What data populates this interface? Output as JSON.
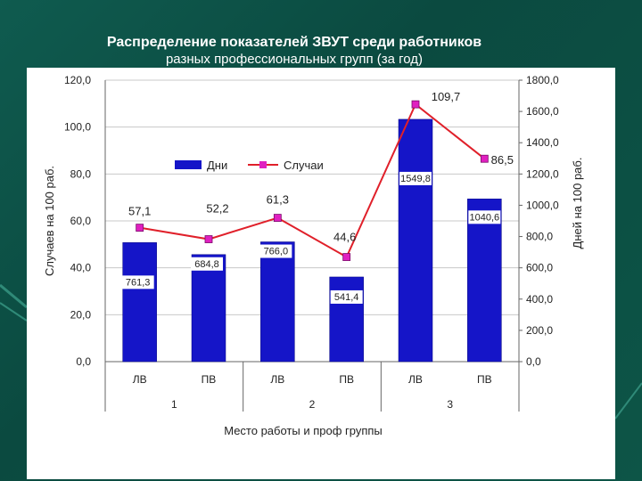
{
  "slide": {
    "title_line1": "Распределение показателей ЗВУТ среди работников",
    "title_line2": "разных профессиональных групп (за год)"
  },
  "colors": {
    "background": "#0f5b4f",
    "bar": "#1515c8",
    "line": "#e0202a",
    "marker": "#e020c0"
  },
  "chart_data": {
    "type": "bar+line",
    "xlabel": "Место работы и проф группы",
    "ylabel_left": "Случаев на 100 раб.",
    "ylabel_right": "Дней на 100 раб.",
    "left_ticks": [
      "0,0",
      "20,0",
      "40,0",
      "60,0",
      "80,0",
      "100,0",
      "120,0"
    ],
    "right_ticks": [
      "0,0",
      "200,0",
      "400,0",
      "600,0",
      "800,0",
      "1000,0",
      "1200,0",
      "1400,0",
      "1600,0",
      "1800,0"
    ],
    "ylim_left": [
      0,
      120
    ],
    "ylim_right": [
      0,
      1800
    ],
    "categories": [
      "ЛВ",
      "ПВ",
      "ЛВ",
      "ПВ",
      "ЛВ",
      "ПВ"
    ],
    "groups": [
      {
        "label": "1",
        "span": [
          0,
          1
        ]
      },
      {
        "label": "2",
        "span": [
          2,
          3
        ]
      },
      {
        "label": "3",
        "span": [
          4,
          5
        ]
      }
    ],
    "series": [
      {
        "name": "Дни",
        "axis": "right",
        "kind": "bar",
        "values": [
          761.3,
          684.8,
          766.0,
          541.4,
          1549.8,
          1040.6
        ],
        "labels": [
          "761,3",
          "684,8",
          "766,0",
          "541,4",
          "1549,8",
          "1040,6"
        ]
      },
      {
        "name": "Случаи",
        "axis": "left",
        "kind": "line",
        "values": [
          57.1,
          52.2,
          61.3,
          44.6,
          109.7,
          86.5
        ],
        "labels": [
          "57,1",
          "52,2",
          "61,3",
          "44,6",
          "109,7",
          "86,5"
        ]
      }
    ],
    "legend": "top-left",
    "grid": true
  }
}
